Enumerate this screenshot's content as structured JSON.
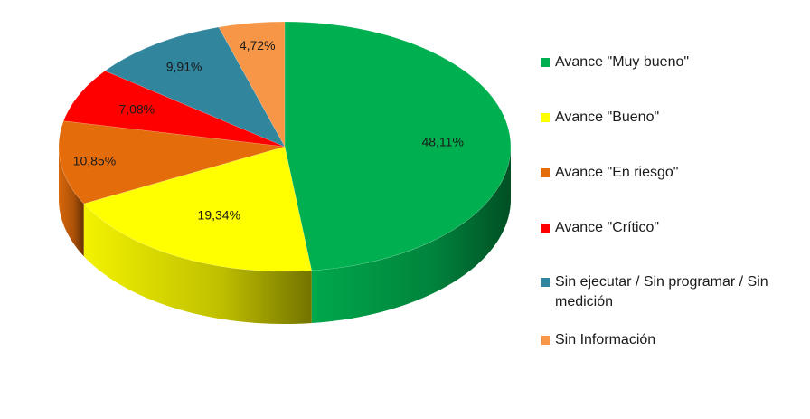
{
  "chart_data": {
    "type": "pie",
    "title": "",
    "categories": [
      "Avance \"Muy bueno\"",
      "Avance \"Bueno\"",
      "Avance \"En riesgo\"",
      "Avance \"Crítico\"",
      "Sin ejecutar / Sin programar / Sin medición",
      "Sin Información"
    ],
    "values": [
      48.11,
      19.34,
      10.85,
      7.08,
      9.91,
      4.72
    ],
    "data_labels": [
      "48,11%",
      "19,34%",
      "10,85%",
      "7,08%",
      "9,91%",
      "4,72%"
    ],
    "colors": [
      "#00B050",
      "#FFFF00",
      "#E46C0A",
      "#FF0000",
      "#31859C",
      "#F79646"
    ],
    "unit": "%",
    "legend_position": "right",
    "style": "3d"
  }
}
